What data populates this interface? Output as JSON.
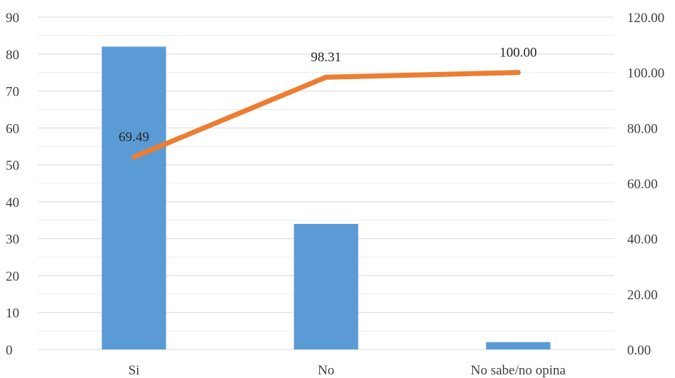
{
  "chart_data": {
    "type": "bar",
    "categories": [
      "Si",
      "No",
      "No sabe/no opina"
    ],
    "series": [
      {
        "type": "bar",
        "axis": "left",
        "values": [
          82,
          34,
          2
        ],
        "color": "#5b9bd5"
      },
      {
        "type": "line",
        "axis": "right",
        "values": [
          69.49,
          98.31,
          100.0
        ],
        "labels": [
          "69.49",
          "98.31",
          "100.00"
        ],
        "color": "#ed7d31"
      }
    ],
    "left_axis": {
      "ylim": [
        0,
        90
      ],
      "ticks": [
        "0",
        "10",
        "20",
        "30",
        "40",
        "50",
        "60",
        "70",
        "80",
        "90"
      ]
    },
    "right_axis": {
      "ylim": [
        0,
        120
      ],
      "ticks": [
        "0.00",
        "20.00",
        "40.00",
        "60.00",
        "80.00",
        "100.00",
        "120.00"
      ]
    },
    "grid": true,
    "legend": "none"
  }
}
